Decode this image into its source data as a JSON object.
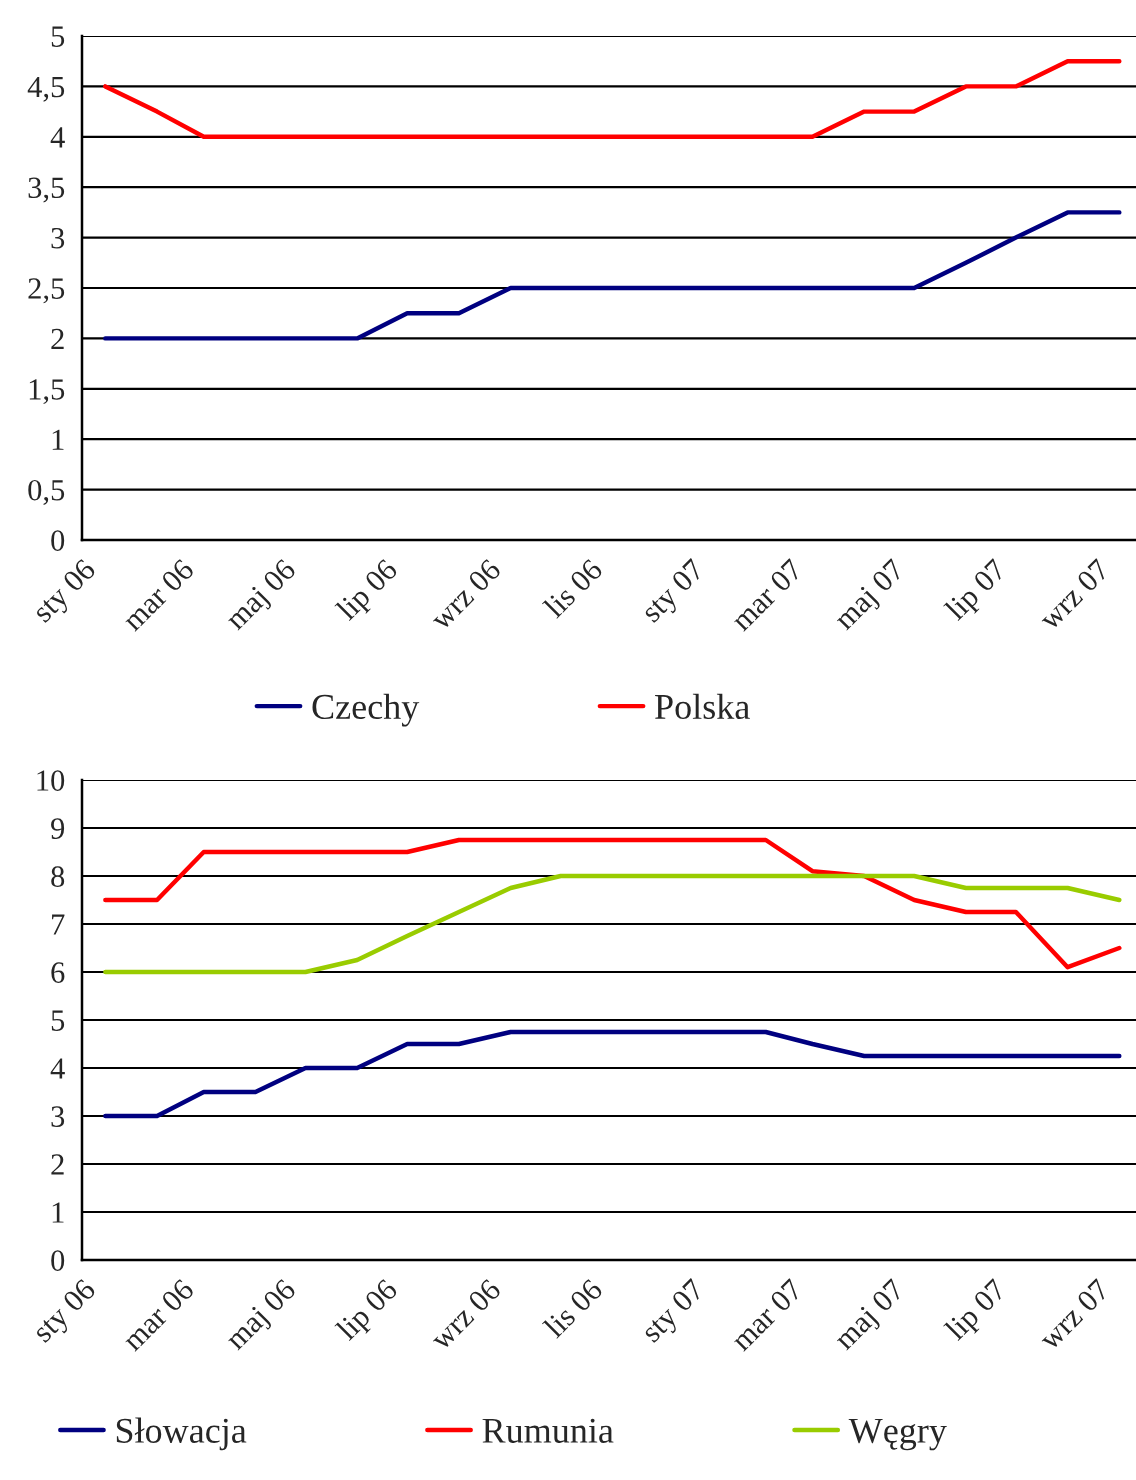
{
  "chart_data": [
    {
      "type": "line",
      "xlim": [
        "2006-01-01",
        "2007-09-25"
      ],
      "ylim": [
        0,
        5
      ],
      "xticks": [
        {
          "value": "2006-01",
          "label": "sty 06"
        },
        {
          "value": "2006-03",
          "label": "mar 06"
        },
        {
          "value": "2006-05",
          "label": "maj 06"
        },
        {
          "value": "2006-07",
          "label": "lip 06"
        },
        {
          "value": "2006-09",
          "label": "wrz 06"
        },
        {
          "value": "2006-11",
          "label": "lis 06"
        },
        {
          "value": "2007-01",
          "label": "sty 07"
        },
        {
          "value": "2007-03",
          "label": "mar 07"
        },
        {
          "value": "2007-05",
          "label": "maj 07"
        },
        {
          "value": "2007-07",
          "label": "lip 07"
        },
        {
          "value": "2007-09",
          "label": "wrz 07"
        }
      ],
      "yticks": [
        {
          "value": 0,
          "label": "0"
        },
        {
          "value": 0.5,
          "label": "0,5"
        },
        {
          "value": 1,
          "label": "1"
        },
        {
          "value": 1.5,
          "label": "1,5"
        },
        {
          "value": 2,
          "label": "2"
        },
        {
          "value": 2.5,
          "label": "2,5"
        },
        {
          "value": 3,
          "label": "3"
        },
        {
          "value": 3.5,
          "label": "3,5"
        },
        {
          "value": 4,
          "label": "4"
        },
        {
          "value": 4.5,
          "label": "4,5"
        },
        {
          "value": 5,
          "label": "5"
        }
      ],
      "x": [
        "2006-01-15",
        "2006-02-15",
        "2006-03-15",
        "2006-04-15",
        "2006-05-15",
        "2006-06-15",
        "2006-07-15",
        "2006-08-15",
        "2006-09-15",
        "2006-10-15",
        "2006-11-15",
        "2006-12-15",
        "2007-01-15",
        "2007-02-15",
        "2007-03-15",
        "2007-04-15",
        "2007-05-15",
        "2007-06-15",
        "2007-07-15",
        "2007-08-15",
        "2007-09-15"
      ],
      "grid": "y",
      "legend": "bottom",
      "marker": "none",
      "line_style": "solid",
      "series": [
        {
          "name": "Czechy",
          "color": "#000080",
          "values": [
            2,
            2,
            2,
            2,
            2,
            2,
            2.25,
            2.25,
            2.5,
            2.5,
            2.5,
            2.5,
            2.5,
            2.5,
            2.5,
            2.5,
            2.5,
            2.75,
            3,
            3.25,
            3.25
          ]
        },
        {
          "name": "Polska",
          "color": "#ff0000",
          "values": [
            4.5,
            4.25,
            4,
            4,
            4,
            4,
            4,
            4,
            4,
            4,
            4,
            4,
            4,
            4,
            4,
            4.25,
            4.25,
            4.5,
            4.5,
            4.75,
            4.75
          ]
        }
      ]
    },
    {
      "type": "line",
      "xlim": [
        "2006-01-01",
        "2007-09-25"
      ],
      "ylim": [
        0,
        10
      ],
      "xticks": [
        {
          "value": "2006-01",
          "label": "sty 06"
        },
        {
          "value": "2006-03",
          "label": "mar 06"
        },
        {
          "value": "2006-05",
          "label": "maj 06"
        },
        {
          "value": "2006-07",
          "label": "lip 06"
        },
        {
          "value": "2006-09",
          "label": "wrz 06"
        },
        {
          "value": "2006-11",
          "label": "lis 06"
        },
        {
          "value": "2007-01",
          "label": "sty 07"
        },
        {
          "value": "2007-03",
          "label": "mar 07"
        },
        {
          "value": "2007-05",
          "label": "maj 07"
        },
        {
          "value": "2007-07",
          "label": "lip 07"
        },
        {
          "value": "2007-09",
          "label": "wrz 07"
        }
      ],
      "yticks": [
        0,
        1,
        2,
        3,
        4,
        5,
        6,
        7,
        8,
        9,
        10
      ],
      "x": [
        "2006-01-15",
        "2006-02-15",
        "2006-03-15",
        "2006-04-15",
        "2006-05-15",
        "2006-06-15",
        "2006-07-15",
        "2006-08-15",
        "2006-09-15",
        "2006-10-15",
        "2006-11-15",
        "2006-12-15",
        "2007-01-15",
        "2007-02-15",
        "2007-03-15",
        "2007-04-15",
        "2007-05-15",
        "2007-06-15",
        "2007-07-15",
        "2007-08-15",
        "2007-09-15"
      ],
      "grid": "y",
      "legend": "bottom",
      "marker": "none",
      "line_style": "solid",
      "series": [
        {
          "name": "Słowacja",
          "color": "#000080",
          "values": [
            3,
            3,
            3.5,
            3.5,
            4,
            4,
            4.5,
            4.5,
            4.75,
            4.75,
            4.75,
            4.75,
            4.75,
            4.75,
            4.5,
            4.25,
            4.25,
            4.25,
            4.25,
            4.25,
            4.25
          ]
        },
        {
          "name": "Rumunia",
          "color": "#ff0000",
          "values": [
            7.5,
            7.5,
            8.5,
            8.5,
            8.5,
            8.5,
            8.5,
            8.75,
            8.75,
            8.75,
            8.75,
            8.75,
            8.75,
            8.75,
            8.1,
            8,
            7.5,
            7.25,
            7.25,
            6.1,
            6.5
          ]
        },
        {
          "name": "Węgry",
          "color": "#99cc00",
          "values": [
            6,
            6,
            6,
            6,
            6,
            6.25,
            6.75,
            7.25,
            7.75,
            8,
            8,
            8,
            8,
            8,
            8,
            8,
            8,
            7.75,
            7.75,
            7.75,
            7.5
          ]
        }
      ]
    }
  ]
}
